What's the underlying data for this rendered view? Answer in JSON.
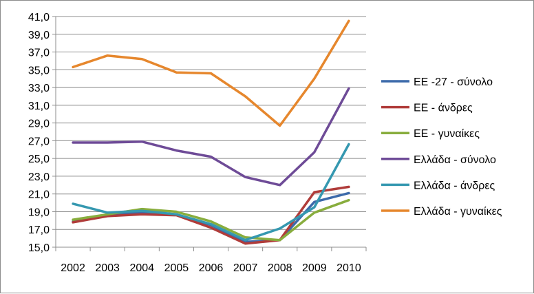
{
  "chart_data": {
    "type": "line",
    "title": "",
    "xlabel": "",
    "ylabel": "",
    "x": [
      "2002",
      "2003",
      "2004",
      "2005",
      "2006",
      "2007",
      "2008",
      "2009",
      "2010"
    ],
    "ylim": [
      15.0,
      41.0
    ],
    "y_ticks": [
      "15,0",
      "17,0",
      "19,0",
      "21,0",
      "23,0",
      "25,0",
      "27,0",
      "29,0",
      "31,0",
      "33,0",
      "35,0",
      "37,0",
      "39,0",
      "41,0"
    ],
    "grid": true,
    "legend_position": "right",
    "series": [
      {
        "name": "ΕΕ -27 - σύνολο",
        "color": "#3c6aaa",
        "values": [
          17.9,
          18.6,
          18.9,
          18.7,
          17.5,
          15.6,
          15.8,
          20.1,
          21.1
        ]
      },
      {
        "name": "ΕΕ - άνδρες",
        "color": "#b03c3a",
        "values": [
          17.8,
          18.5,
          18.7,
          18.6,
          17.2,
          15.4,
          15.8,
          21.2,
          21.8
        ]
      },
      {
        "name": "ΕΕ - γυναίκες",
        "color": "#88ad3d",
        "values": [
          18.1,
          18.7,
          19.3,
          19.0,
          17.9,
          16.1,
          15.8,
          18.9,
          20.3
        ]
      },
      {
        "name": "Ελλάδα - σύνολο",
        "color": "#6e4b97",
        "values": [
          26.8,
          26.8,
          26.9,
          25.9,
          25.2,
          22.9,
          22.0,
          25.7,
          32.9
        ]
      },
      {
        "name": "Ελλάδα - άνδρες",
        "color": "#3598b0",
        "values": [
          19.9,
          18.9,
          19.1,
          18.7,
          17.6,
          15.8,
          17.1,
          19.5,
          26.6
        ]
      },
      {
        "name": "Ελλάδα - γυναίκες",
        "color": "#e6872d",
        "values": [
          35.3,
          36.6,
          36.2,
          34.7,
          34.6,
          32.0,
          28.7,
          34.0,
          40.5
        ]
      }
    ]
  }
}
